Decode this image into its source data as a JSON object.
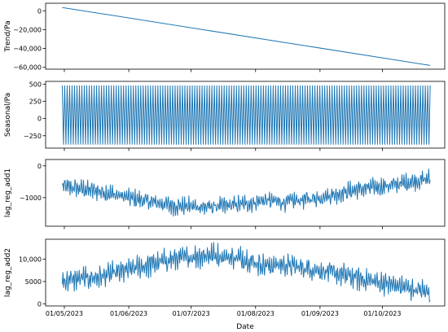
{
  "chart_data": {
    "type": "line",
    "line_color": "#1f77b4",
    "xlabel": "Date",
    "x_ticks": [
      "01/05/2023",
      "01/06/2023",
      "01/07/2023",
      "01/08/2023",
      "01/09/2023",
      "01/10/2023"
    ],
    "x_range": [
      "2023-04-22",
      "2023-10-31"
    ],
    "x_data_range": [
      "2023-04-30",
      "2023-10-24"
    ],
    "grid": false,
    "panels": [
      {
        "ylabel": "Trend/Pa",
        "ylim": [
          -62000,
          8000
        ],
        "yticks": [
          0,
          -20000,
          -40000,
          -60000
        ],
        "ytick_labels": [
          "0",
          "−20,000",
          "−40,000",
          "−60,000"
        ],
        "series": {
          "start": 3500,
          "end": -58000
        }
      },
      {
        "ylabel": "Seasonal/Pa",
        "ylim": [
          -430,
          540
        ],
        "yticks": [
          500,
          250,
          0,
          -250
        ],
        "ytick_labels": [
          "500",
          "250",
          "0",
          "−250"
        ],
        "series": {
          "max": 480,
          "min": -380,
          "cycles": 150
        }
      },
      {
        "ylabel": "lag_reg_add1",
        "ylim": [
          -1900,
          200
        ],
        "yticks": [
          0,
          -1000
        ],
        "ytick_labels": [
          "0",
          "−1000"
        ],
        "series": {
          "trend": [
            [
              0,
              -650
            ],
            [
              0.1,
              -800
            ],
            [
              0.2,
              -1050
            ],
            [
              0.3,
              -1250
            ],
            [
              0.4,
              -1300
            ],
            [
              0.5,
              -1200
            ],
            [
              0.55,
              -1080
            ],
            [
              0.6,
              -1150
            ],
            [
              0.7,
              -1000
            ],
            [
              0.8,
              -750
            ],
            [
              0.9,
              -600
            ],
            [
              1.0,
              -400
            ]
          ],
          "amplitude": 330
        }
      },
      {
        "ylabel": "lag_reg_add2",
        "ylim": [
          -500,
          14500
        ],
        "yticks": [
          10000,
          5000,
          0
        ],
        "ytick_labels": [
          "10,000",
          "5000",
          "0"
        ],
        "series": {
          "trend": [
            [
              0,
              5200
            ],
            [
              0.1,
              6000
            ],
            [
              0.2,
              8000
            ],
            [
              0.3,
              10000
            ],
            [
              0.4,
              11000
            ],
            [
              0.5,
              10000
            ],
            [
              0.55,
              8500
            ],
            [
              0.6,
              8800
            ],
            [
              0.7,
              7500
            ],
            [
              0.8,
              5800
            ],
            [
              0.9,
              4200
            ],
            [
              1.0,
              2500
            ]
          ],
          "amplitude": 3000
        }
      }
    ]
  }
}
